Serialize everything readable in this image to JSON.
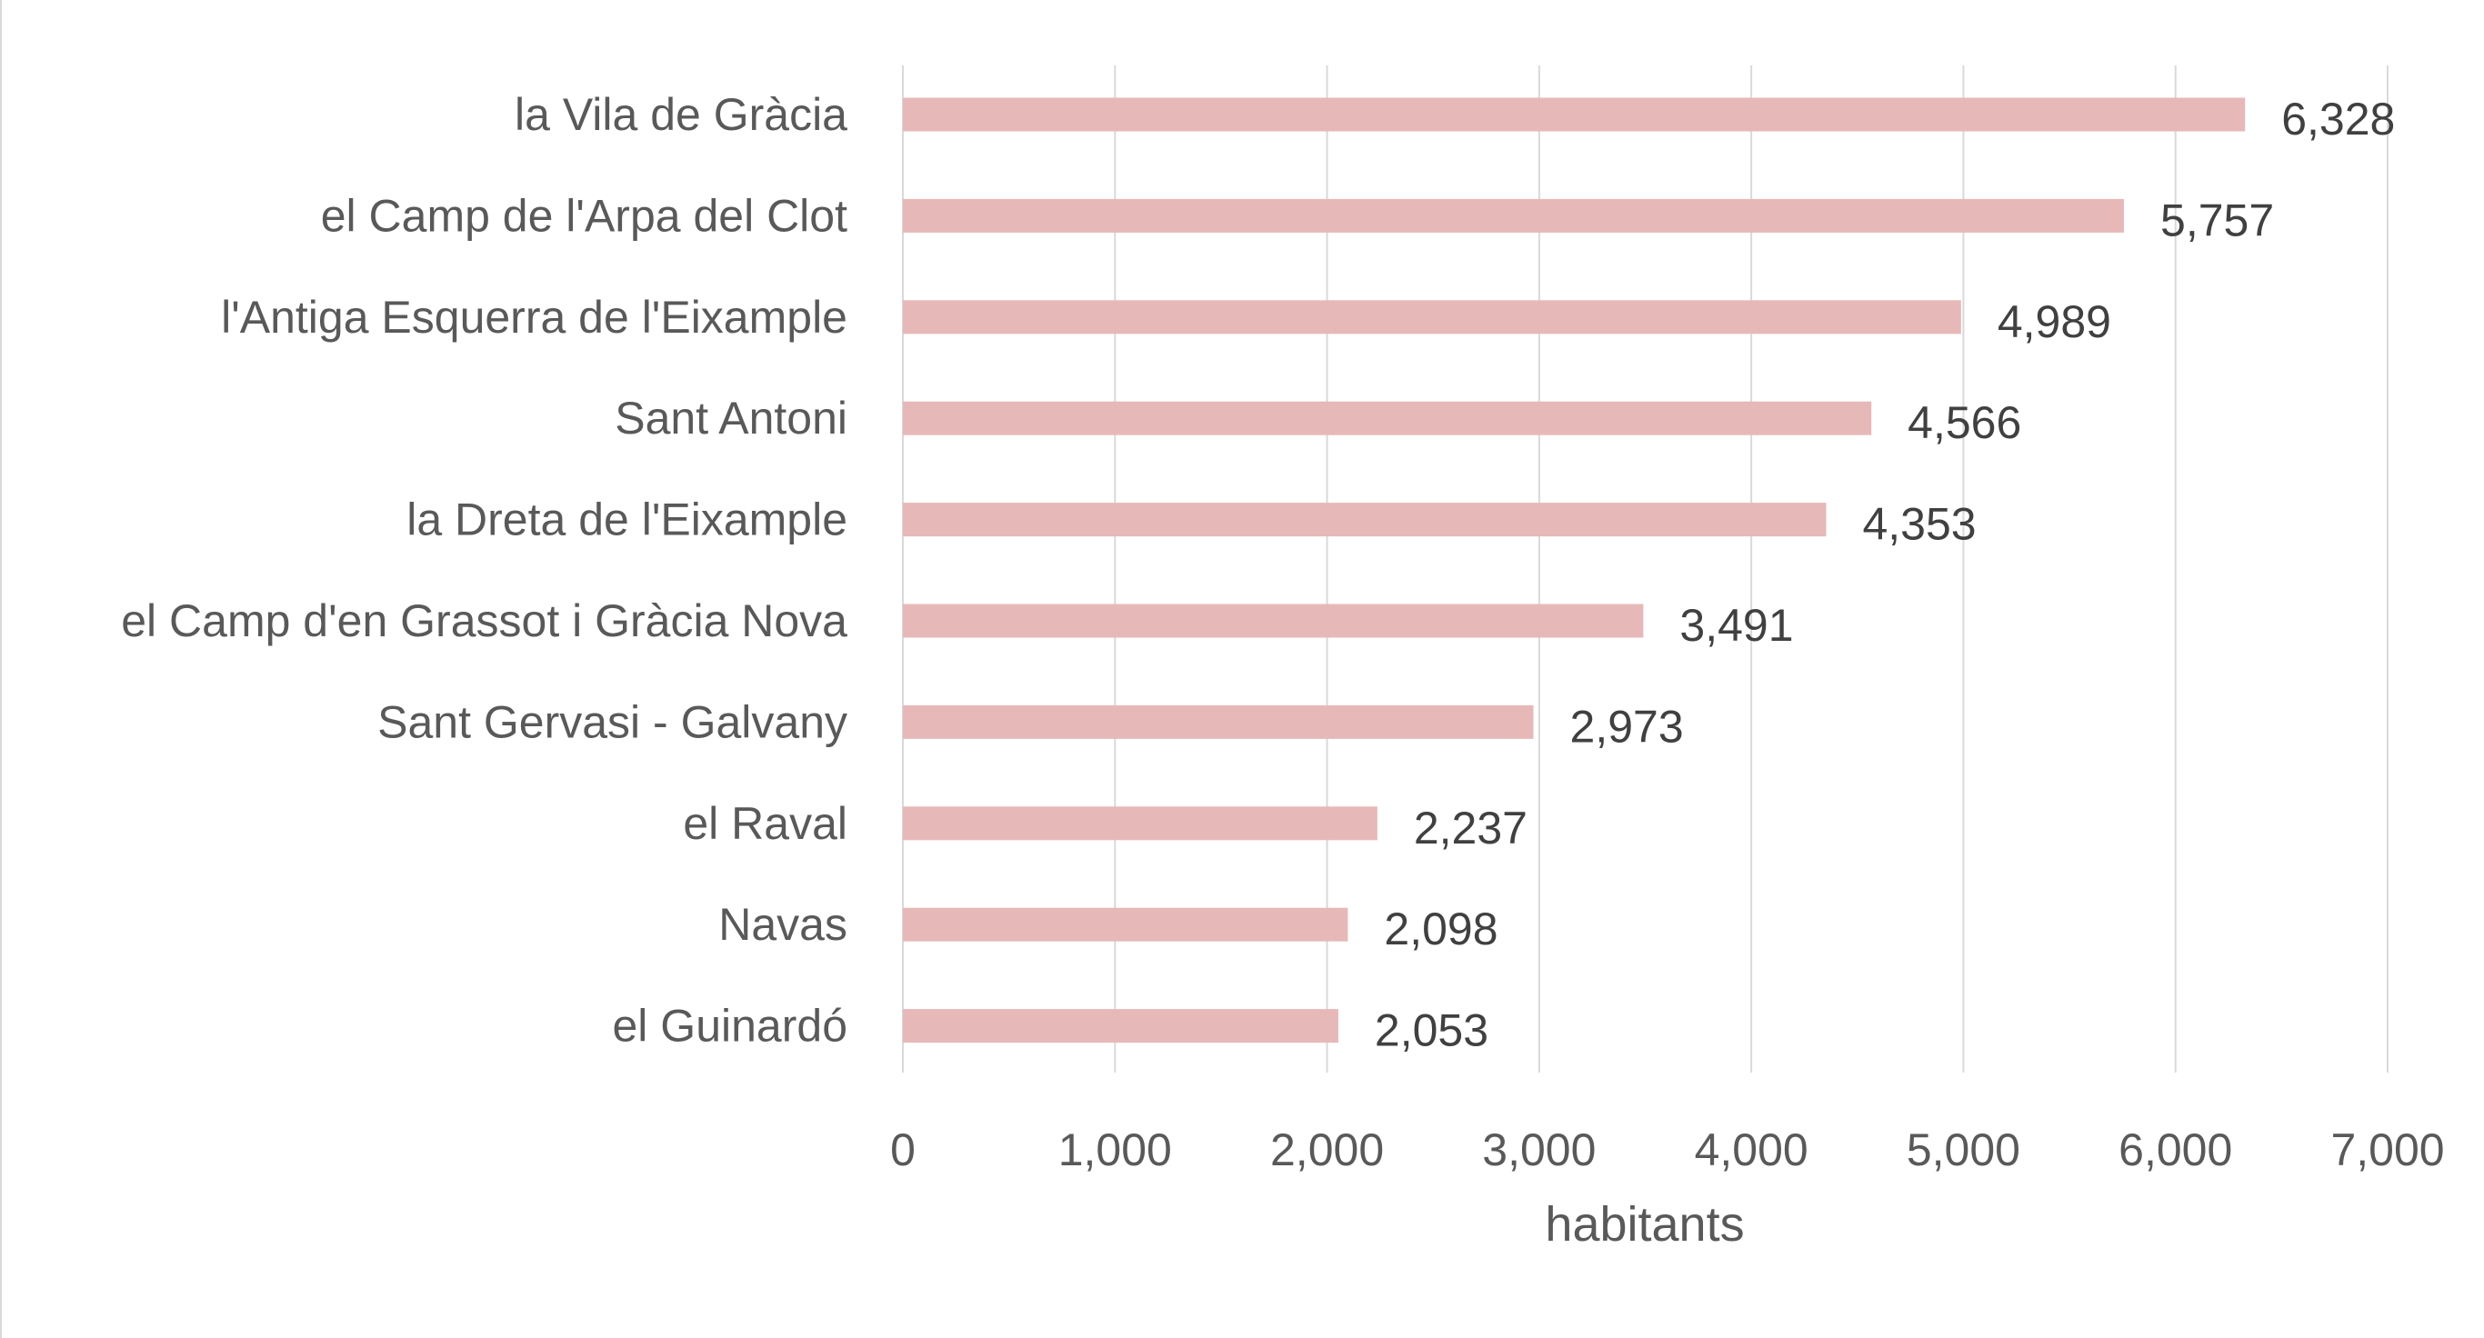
{
  "chart_data": {
    "type": "bar",
    "orientation": "horizontal",
    "categories": [
      "la Vila de Gràcia",
      "el Camp de l'Arpa del Clot",
      "l'Antiga Esquerra de l'Eixample",
      "Sant Antoni",
      "la Dreta de l'Eixample",
      "el Camp d'en Grassot i Gràcia Nova",
      "Sant Gervasi - Galvany",
      "el Raval",
      "Navas",
      "el Guinardó"
    ],
    "values": [
      6328,
      5757,
      4989,
      4566,
      4353,
      3491,
      2973,
      2237,
      2098,
      2053
    ],
    "value_labels": [
      "6,328",
      "5,757",
      "4,989",
      "4,566",
      "4,353",
      "3,491",
      "2,973",
      "2,237",
      "2,098",
      "2,053"
    ],
    "title": "",
    "xlabel": "habitants",
    "ylabel": "",
    "xlim": [
      0,
      7000
    ],
    "x_ticks": [
      0,
      1000,
      2000,
      3000,
      4000,
      5000,
      6000,
      7000
    ],
    "x_tick_labels": [
      "0",
      "1,000",
      "2,000",
      "3,000",
      "4,000",
      "5,000",
      "6,000",
      "7,000"
    ],
    "grid": "vertical",
    "legend": "none",
    "bar_color": "#e6b9b8",
    "gridline_color": "#d9d9d9"
  }
}
